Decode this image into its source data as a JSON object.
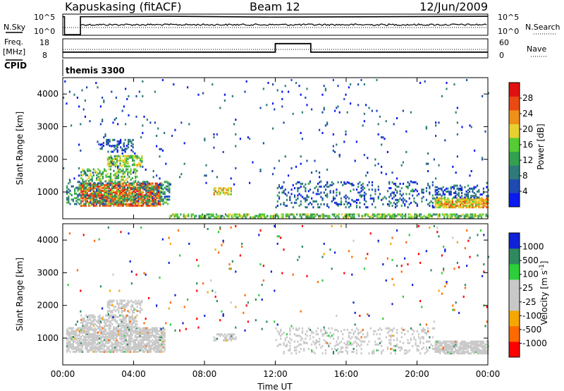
{
  "header": {
    "station": "Kapuskasing (fitACF)",
    "beam": "Beam 12",
    "date": "12/Jun/2009",
    "cpid_text": "themis 3300"
  },
  "side_labels": {
    "nsky": "N.Sky",
    "freq": "Freq.",
    "mhz": "[MHz]",
    "cpid": "CPID",
    "nsearch": "N.Search",
    "nave": "Nave"
  },
  "noise_axis": {
    "left_top": "10^5",
    "left_bottom": "10^0",
    "right_top": "10^5",
    "right_bottom": "10^0"
  },
  "freq_axis": {
    "left_ticks": [
      "18",
      "8"
    ],
    "right_ticks": [
      "60",
      "0"
    ]
  },
  "time_axis": {
    "label": "Time UT",
    "ticks": [
      "00:00",
      "04:00",
      "08:00",
      "12:00",
      "16:00",
      "20:00",
      "00:00"
    ]
  },
  "colors": {
    "power_scale": [
      "#0a1af0",
      "#1e4ab2",
      "#2e7a7a",
      "#33a050",
      "#55cc33",
      "#e8d030",
      "#f09018",
      "#e84a12",
      "#e01010"
    ],
    "velocity_scale": [
      "#ff0000",
      "#ff6a00",
      "#f5a800",
      "#c8c8c8",
      "#c8c8c8",
      "#2ccf3a",
      "#2e8a5e",
      "#1e55aa",
      "#1022d8"
    ]
  },
  "chart_data": [
    {
      "type": "line",
      "name": "noise-panel",
      "description_series": [
        {
          "name": "N.Sky",
          "x_hours": [
            0,
            0.1,
            0.1,
            1.0,
            1.0,
            6,
            12,
            18,
            24
          ],
          "y_log10": [
            4.7,
            4.7,
            0,
            0,
            4.7,
            4.8,
            4.6,
            4.7,
            4.8
          ]
        }
      ],
      "x_range": [
        0,
        24
      ],
      "y_range_log10": [
        0,
        5
      ]
    },
    {
      "type": "line",
      "name": "freq-panel",
      "series": [
        {
          "name": "Freq.",
          "x_hours": [
            0,
            12,
            12,
            14,
            14,
            24
          ],
          "y_mhz": [
            11,
            11,
            15.5,
            15.5,
            11,
            11
          ]
        },
        {
          "name": "Nave",
          "x_hours": [
            0,
            24
          ],
          "y": [
            25,
            25
          ]
        }
      ],
      "x_range": [
        0,
        24
      ],
      "ylim_left": [
        8,
        18
      ],
      "ylim_right": [
        0,
        60
      ]
    },
    {
      "type": "heatmap",
      "name": "power-panel",
      "ylabel": "Slant Range [km]",
      "xlabel": "",
      "y_ticks": [
        "1000",
        "2000",
        "3000",
        "4000"
      ],
      "ylim": [
        180,
        4500
      ],
      "x_range": [
        0,
        24
      ],
      "colorbar": {
        "label": "Power [dB]",
        "ticks": [
          "4",
          "8",
          "12",
          "16",
          "20",
          "24",
          "28"
        ],
        "range": [
          0,
          30
        ]
      },
      "regions": [
        {
          "t0": 1.0,
          "t1": 5.5,
          "r0": 550,
          "r1": 1250,
          "value": 24,
          "density": 0.75
        },
        {
          "t0": 0.2,
          "t1": 6.0,
          "r0": 600,
          "r1": 1300,
          "value": 10,
          "density": 0.35
        },
        {
          "t0": 1.0,
          "t1": 4.2,
          "r0": 1300,
          "r1": 1700,
          "value": 14,
          "density": 0.45
        },
        {
          "t0": 2.5,
          "t1": 4.5,
          "r0": 1750,
          "r1": 2100,
          "value": 16,
          "density": 0.5
        },
        {
          "t0": 2.0,
          "t1": 4.0,
          "r0": 2200,
          "r1": 2600,
          "value": 6,
          "density": 0.3
        },
        {
          "t0": 8.5,
          "t1": 9.5,
          "r0": 900,
          "r1": 1100,
          "value": 20,
          "density": 0.6
        },
        {
          "t0": 12.0,
          "t1": 21.0,
          "r0": 500,
          "r1": 1300,
          "value": 6,
          "density": 0.18
        },
        {
          "t0": 21.0,
          "t1": 24.0,
          "r0": 500,
          "r1": 800,
          "value": 20,
          "density": 0.8
        },
        {
          "t0": 21.0,
          "t1": 24.0,
          "r0": 800,
          "r1": 1200,
          "value": 6,
          "density": 0.35
        },
        {
          "t0": 6.0,
          "t1": 24.0,
          "r0": 190,
          "r1": 320,
          "value": 14,
          "density": 0.6
        },
        {
          "t0": 0.0,
          "t1": 24.0,
          "r0": 1200,
          "r1": 4400,
          "value": 5,
          "density": 0.015
        }
      ]
    },
    {
      "type": "heatmap",
      "name": "velocity-panel",
      "ylabel": "Slant Range [km]",
      "xlabel": "Time UT",
      "y_ticks": [
        "1000",
        "2000",
        "3000",
        "4000"
      ],
      "ylim": [
        180,
        4500
      ],
      "x_range": [
        0,
        24
      ],
      "colorbar": {
        "label": "Velocity [m s^-1]",
        "ticks": [
          "-1000",
          "-500",
          "-100",
          "-25",
          "25",
          "100",
          "500",
          "1000"
        ]
      },
      "regions": [
        {
          "t0": 0.2,
          "t1": 5.8,
          "r0": 550,
          "r1": 1300,
          "value": 0,
          "density": 0.75
        },
        {
          "t0": 1.0,
          "t1": 4.2,
          "r0": 1300,
          "r1": 1700,
          "value": 0,
          "density": 0.5
        },
        {
          "t0": 2.5,
          "t1": 4.5,
          "r0": 1750,
          "r1": 2150,
          "value": 0,
          "density": 0.5
        },
        {
          "t0": 8.5,
          "t1": 9.8,
          "r0": 900,
          "r1": 1100,
          "value": 0,
          "density": 0.5
        },
        {
          "t0": 12.0,
          "t1": 21.0,
          "r0": 500,
          "r1": 1300,
          "value": 0,
          "density": 0.2
        },
        {
          "t0": 21.0,
          "t1": 24.0,
          "r0": 500,
          "r1": 900,
          "value": 0,
          "density": 0.8
        },
        {
          "t0": 0.0,
          "t1": 24.0,
          "r0": 1200,
          "r1": 4400,
          "value": -300,
          "density": 0.012
        }
      ]
    }
  ]
}
